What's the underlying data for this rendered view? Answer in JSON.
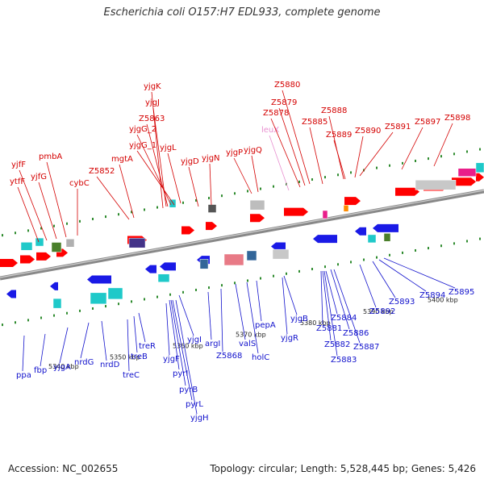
{
  "title": "Escherichia coli O157:H7 EDL933, complete genome",
  "footer": {
    "accession": "Accession: NC_002655",
    "summary": "Topology: circular; Length: 5,528,445 bp; Genes: 5,426"
  },
  "colors": {
    "forward_label": "#d40000",
    "reverse_label": "#1111cc",
    "rna_label": "#e88fd0",
    "forward_arrow": "#ff0000",
    "reverse_arrow": "#1a1ae6",
    "backbone": "#888888"
  },
  "scale_ticks": [
    "5340 kbp",
    "5350 kbp",
    "5360 kbp",
    "5370 kbp",
    "5380 kbp",
    "5390 kbp",
    "5400 kbp"
  ],
  "top_labels": [
    "ytfF",
    "yjfF",
    "yjfG",
    "pmbA",
    "cybC",
    "Z5852",
    "mgtA",
    "yjgK",
    "yjgJ",
    "Z5863",
    "yjgG_2",
    "yjgG_1",
    "yjgL",
    "yjgD",
    "yjgN",
    "yjgP",
    "yjgQ",
    "leuX",
    "Z5878",
    "Z5879",
    "Z5880",
    "Z5885",
    "Z5888",
    "Z5889",
    "Z5890",
    "Z5891",
    "Z5897",
    "Z5898"
  ],
  "bottom_labels": [
    "ppa",
    "fbp",
    "yjgA",
    "nrdG",
    "nrdD",
    "treC",
    "treB",
    "treR",
    "yjgF",
    "pyrI",
    "pyrB",
    "pyrL",
    "yjgH",
    "yjgI",
    "argI",
    "Z5868",
    "valS",
    "holC",
    "pepA",
    "yjgR",
    "yjgB",
    "Z5881",
    "Z5882",
    "Z5883",
    "Z5884",
    "Z5886",
    "Z5887",
    "Z5892",
    "Z5893",
    "Z5894",
    "Z5895"
  ]
}
